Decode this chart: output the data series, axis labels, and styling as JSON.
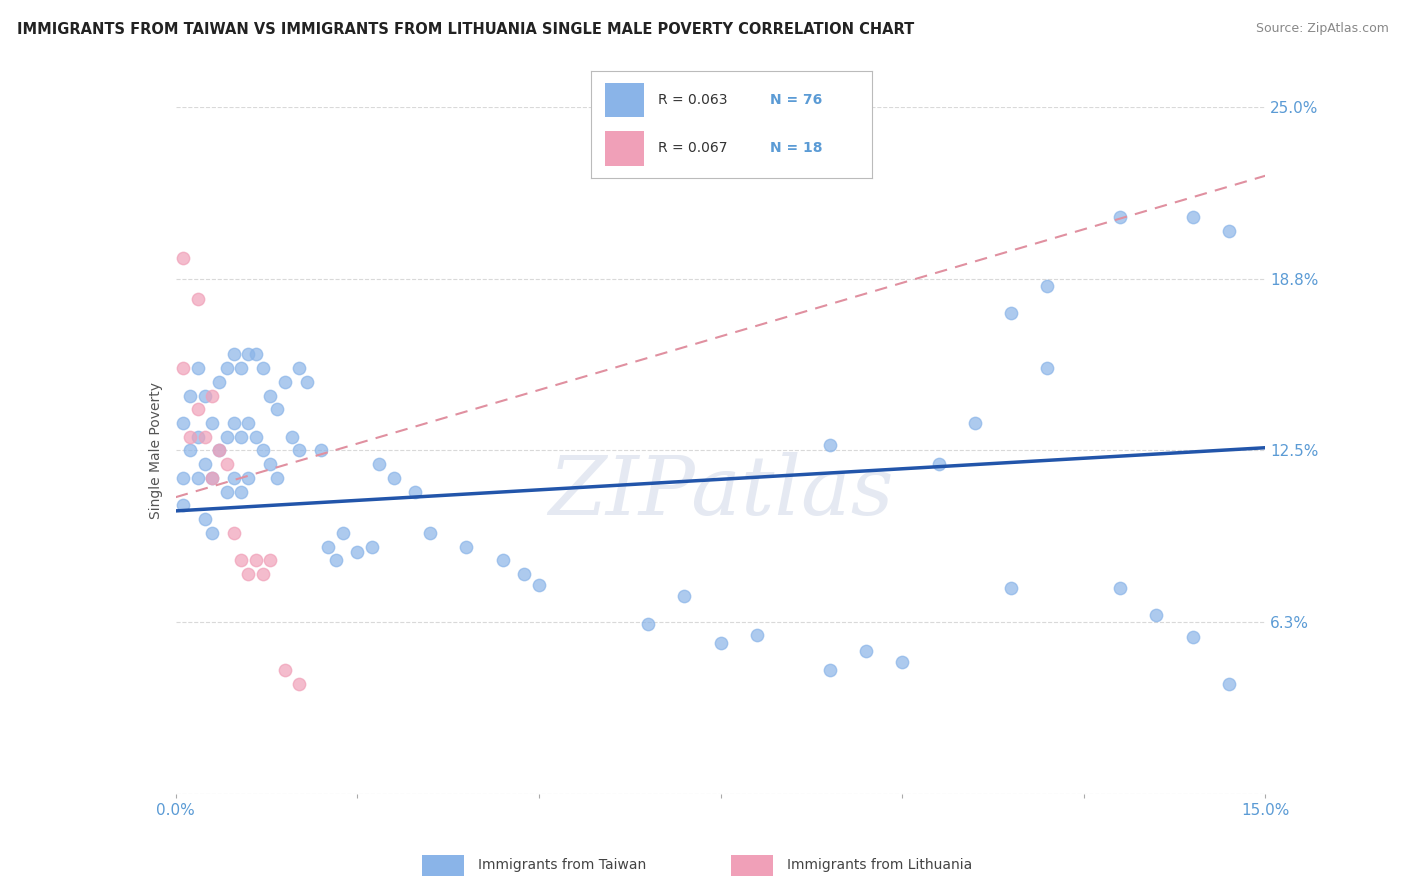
{
  "title": "IMMIGRANTS FROM TAIWAN VS IMMIGRANTS FROM LITHUANIA SINGLE MALE POVERTY CORRELATION CHART",
  "source": "Source: ZipAtlas.com",
  "ylabel": "Single Male Poverty",
  "xlim": [
    0.0,
    0.15
  ],
  "ylim": [
    0.0,
    0.25
  ],
  "ytick_vals": [
    0.0,
    0.0625,
    0.125,
    0.1875,
    0.25
  ],
  "ytick_labels": [
    "",
    "6.3%",
    "12.5%",
    "18.8%",
    "25.0%"
  ],
  "xtick_vals": [
    0.0,
    0.025,
    0.05,
    0.075,
    0.1,
    0.125,
    0.15
  ],
  "taiwan_color": "#8ab4e8",
  "lithuania_color": "#f0a0b8",
  "taiwan_line_color": "#2255aa",
  "lithuania_line_color": "#e090a0",
  "taiwan_R": 0.063,
  "taiwan_N": 76,
  "lithuania_R": 0.067,
  "lithuania_N": 18,
  "taiwan_trend_y0": 0.103,
  "taiwan_trend_y1": 0.126,
  "lithuania_trend_y0": 0.108,
  "lithuania_trend_y1": 0.225,
  "taiwan_x": [
    0.001,
    0.001,
    0.001,
    0.002,
    0.002,
    0.003,
    0.003,
    0.003,
    0.004,
    0.004,
    0.004,
    0.005,
    0.005,
    0.005,
    0.006,
    0.006,
    0.007,
    0.007,
    0.007,
    0.008,
    0.008,
    0.008,
    0.009,
    0.009,
    0.009,
    0.01,
    0.01,
    0.01,
    0.011,
    0.011,
    0.012,
    0.012,
    0.013,
    0.013,
    0.014,
    0.014,
    0.015,
    0.016,
    0.017,
    0.017,
    0.018,
    0.02,
    0.021,
    0.022,
    0.023,
    0.025,
    0.027,
    0.028,
    0.03,
    0.033,
    0.035,
    0.04,
    0.045,
    0.048,
    0.05,
    0.065,
    0.07,
    0.075,
    0.08,
    0.09,
    0.09,
    0.095,
    0.1,
    0.105,
    0.11,
    0.115,
    0.12,
    0.13,
    0.135,
    0.14,
    0.14,
    0.145,
    0.115,
    0.12,
    0.13,
    0.145
  ],
  "taiwan_y": [
    0.135,
    0.115,
    0.105,
    0.145,
    0.125,
    0.155,
    0.13,
    0.115,
    0.145,
    0.12,
    0.1,
    0.135,
    0.115,
    0.095,
    0.15,
    0.125,
    0.155,
    0.13,
    0.11,
    0.16,
    0.135,
    0.115,
    0.155,
    0.13,
    0.11,
    0.16,
    0.135,
    0.115,
    0.16,
    0.13,
    0.155,
    0.125,
    0.145,
    0.12,
    0.14,
    0.115,
    0.15,
    0.13,
    0.155,
    0.125,
    0.15,
    0.125,
    0.09,
    0.085,
    0.095,
    0.088,
    0.09,
    0.12,
    0.115,
    0.11,
    0.095,
    0.09,
    0.085,
    0.08,
    0.076,
    0.062,
    0.072,
    0.055,
    0.058,
    0.045,
    0.127,
    0.052,
    0.048,
    0.12,
    0.135,
    0.075,
    0.155,
    0.075,
    0.065,
    0.057,
    0.21,
    0.205,
    0.175,
    0.185,
    0.21,
    0.04
  ],
  "lithuania_x": [
    0.001,
    0.001,
    0.002,
    0.003,
    0.003,
    0.004,
    0.005,
    0.005,
    0.006,
    0.007,
    0.008,
    0.009,
    0.01,
    0.011,
    0.012,
    0.013,
    0.015,
    0.017
  ],
  "lithuania_y": [
    0.195,
    0.155,
    0.13,
    0.14,
    0.18,
    0.13,
    0.145,
    0.115,
    0.125,
    0.12,
    0.095,
    0.085,
    0.08,
    0.085,
    0.08,
    0.085,
    0.045,
    0.04
  ],
  "watermark": "ZIPatlas",
  "grid_color": "#d0d0d0",
  "bg_color": "#ffffff",
  "tick_color": "#5b9bd5",
  "title_color": "#222222",
  "legend_text_color": "#333333",
  "legend_rn_color": "#5b9bd5",
  "source_color": "#888888"
}
